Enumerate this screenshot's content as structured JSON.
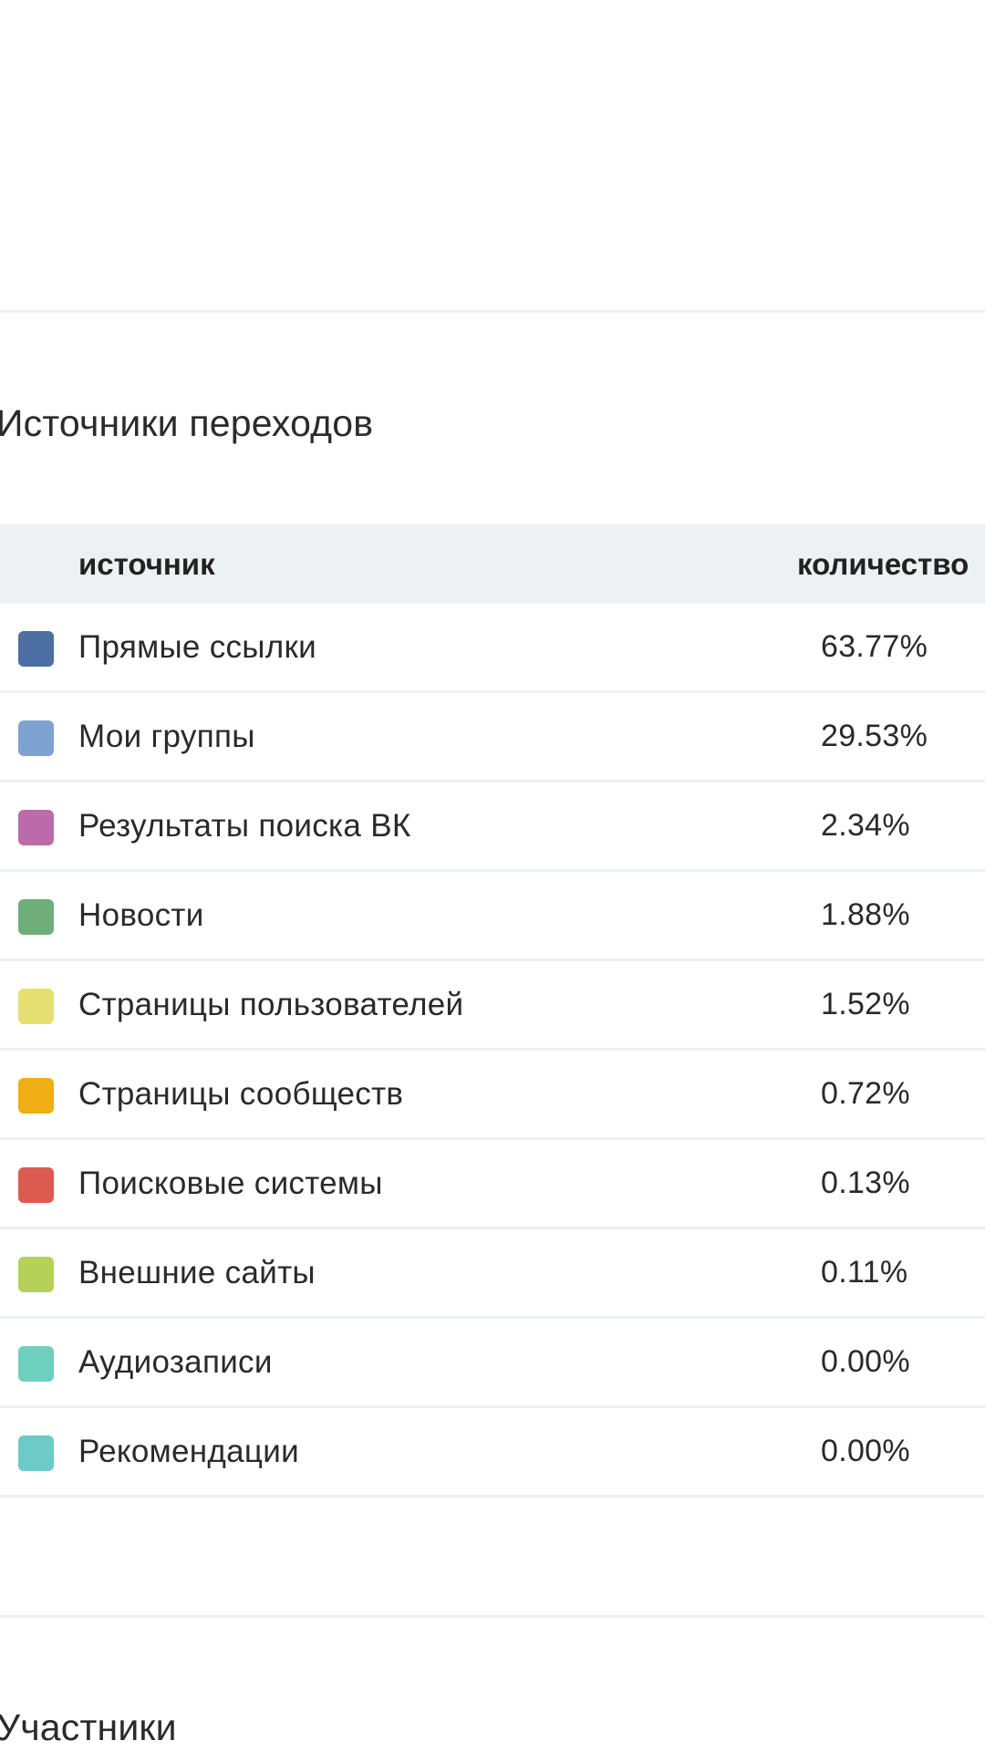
{
  "sources_section": {
    "title": "Источники переходов",
    "columns": {
      "source": "источник",
      "count": "количество"
    },
    "rows": [
      {
        "label": "Прямые ссылки",
        "value": "63.77%",
        "color": "#4d6ea0"
      },
      {
        "label": "Мои группы",
        "value": "29.53%",
        "color": "#7fa3d0"
      },
      {
        "label": "Результаты поиска ВК",
        "value": "2.34%",
        "color": "#bd6aab"
      },
      {
        "label": "Новости",
        "value": "1.88%",
        "color": "#6fae78"
      },
      {
        "label": "Страницы пользователей",
        "value": "1.52%",
        "color": "#e6e072"
      },
      {
        "label": "Страницы сообществ",
        "value": "0.72%",
        "color": "#eeae14"
      },
      {
        "label": "Поисковые системы",
        "value": "0.13%",
        "color": "#db5b50"
      },
      {
        "label": "Внешние сайты",
        "value": "0.11%",
        "color": "#b6d158"
      },
      {
        "label": "Аудиозаписи",
        "value": "0.00%",
        "color": "#6fcfbf"
      },
      {
        "label": "Рекомендации",
        "value": "0.00%",
        "color": "#6ccac7"
      }
    ]
  },
  "members_section": {
    "title": "Участники"
  }
}
